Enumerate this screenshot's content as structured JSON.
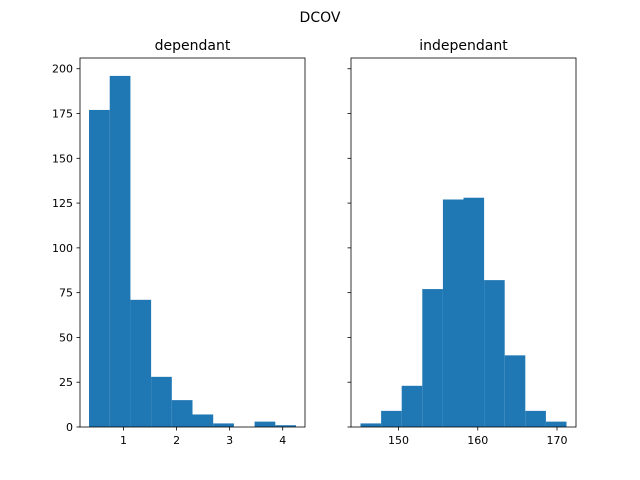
{
  "figure": {
    "suptitle": "DCOV"
  },
  "colors": {
    "bar": "#1f77b4",
    "axes": "#000000",
    "background": "#ffffff"
  },
  "chart_data": [
    {
      "type": "bar",
      "title": "dependant",
      "xlabel": "",
      "ylabel": "",
      "bin_edges": [
        0.35,
        0.74,
        1.13,
        1.52,
        1.91,
        2.3,
        2.69,
        3.08,
        3.47,
        3.86,
        4.25
      ],
      "values": [
        177,
        196,
        71,
        28,
        15,
        7,
        2,
        0,
        3,
        1
      ],
      "xlim": [
        0.18,
        4.42
      ],
      "ylim": [
        0,
        206
      ],
      "xticks": [
        1,
        2,
        3,
        4
      ],
      "xtick_labels": [
        "1",
        "2",
        "3",
        "4"
      ],
      "yticks": [
        0,
        25,
        50,
        75,
        100,
        125,
        150,
        175,
        200
      ],
      "ytick_labels": [
        "0",
        "25",
        "50",
        "75",
        "100",
        "125",
        "150",
        "175",
        "200"
      ],
      "show_ytick_labels": true,
      "grid": false,
      "legend": "none"
    },
    {
      "type": "bar",
      "title": "independant",
      "xlabel": "",
      "ylabel": "",
      "bin_edges": [
        145.2,
        147.8,
        150.4,
        153.0,
        155.6,
        158.2,
        160.8,
        163.4,
        166.0,
        168.6,
        171.2
      ],
      "values": [
        2,
        9,
        23,
        77,
        127,
        128,
        82,
        40,
        9,
        3
      ],
      "xlim": [
        144.0,
        172.4
      ],
      "ylim": [
        0,
        206
      ],
      "xticks": [
        150,
        160,
        170
      ],
      "xtick_labels": [
        "150",
        "160",
        "170"
      ],
      "yticks": [
        0,
        25,
        50,
        75,
        100,
        125,
        150,
        175,
        200
      ],
      "ytick_labels": [],
      "show_ytick_labels": false,
      "grid": false,
      "legend": "none"
    }
  ]
}
